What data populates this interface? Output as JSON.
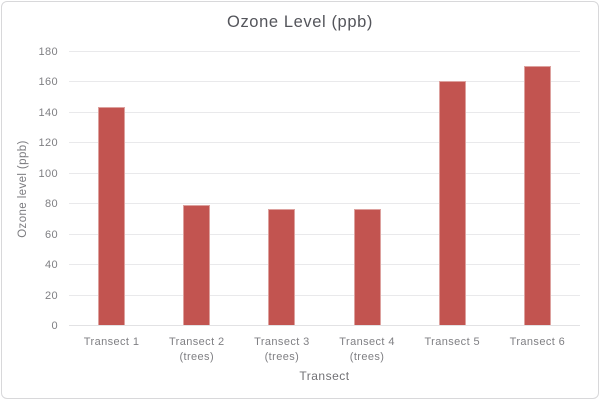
{
  "window": {
    "background_color": "#ffffff",
    "card_border_color": "#d8d8da"
  },
  "chart_data": {
    "type": "bar",
    "title": "Ozone Level (ppb)",
    "xlabel": "Transect",
    "ylabel": "Ozone level (ppb)",
    "categories": [
      "Transect 1",
      "Transect 2\n(trees)",
      "Transect 3\n(trees)",
      "Transect 4\n(trees)",
      "Transect 5",
      "Transect 6"
    ],
    "values": [
      143,
      79,
      76,
      76,
      160,
      170
    ],
    "ylim": [
      0,
      180
    ],
    "ytick_step": 20,
    "ytick_labels": [
      "0",
      "20",
      "40",
      "60",
      "80",
      "100",
      "120",
      "140",
      "160",
      "180"
    ],
    "grid": "horizontal",
    "legend_position": "none",
    "bar_color": "#c25450",
    "bar_edge_color": "#dda19e",
    "gridline_color": "#e9e9eb",
    "title_color": "#54555b",
    "tick_label_color": "#7f7f83"
  }
}
